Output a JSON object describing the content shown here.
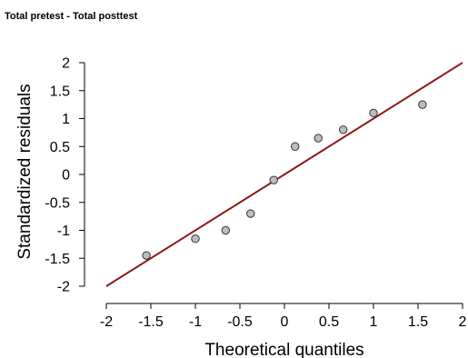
{
  "header": {
    "title": "Total pretest - Total posttest"
  },
  "colors": {
    "reference_line": "#8b1a1a",
    "point_fill": "#bdbdbd",
    "point_stroke": "#333333"
  },
  "chart_data": {
    "type": "scatter",
    "title": "Total pretest - Total posttest",
    "xlabel": "Theoretical quantiles",
    "ylabel": "Standardized residuals",
    "xlim": [
      -2,
      2
    ],
    "ylim": [
      -2,
      2
    ],
    "xticks": [
      -2,
      -1.5,
      -1,
      -0.5,
      0,
      0.5,
      1,
      1.5,
      2
    ],
    "yticks": [
      -2,
      -1.5,
      -1,
      -0.5,
      0,
      0.5,
      1,
      1.5,
      2
    ],
    "x_tick_labels": [
      "-2",
      "-1.5",
      "-1",
      "-0.5",
      "0",
      "0.5",
      "1",
      "1.5",
      "2"
    ],
    "y_tick_labels": [
      "-2",
      "-1.5",
      "-1",
      "-0.5",
      "0",
      "0.5",
      "1",
      "1.5",
      "2"
    ],
    "grid": false,
    "reference_line": {
      "from": [
        -2,
        -2
      ],
      "to": [
        2,
        2
      ]
    },
    "points": [
      {
        "x": -1.55,
        "y": -1.45
      },
      {
        "x": -1.0,
        "y": -1.15
      },
      {
        "x": -0.66,
        "y": -1.0
      },
      {
        "x": -0.38,
        "y": -0.7
      },
      {
        "x": -0.12,
        "y": -0.1
      },
      {
        "x": 0.12,
        "y": 0.5
      },
      {
        "x": 0.38,
        "y": 0.65
      },
      {
        "x": 0.66,
        "y": 0.8
      },
      {
        "x": 1.0,
        "y": 1.1
      },
      {
        "x": 1.55,
        "y": 1.25
      }
    ]
  }
}
